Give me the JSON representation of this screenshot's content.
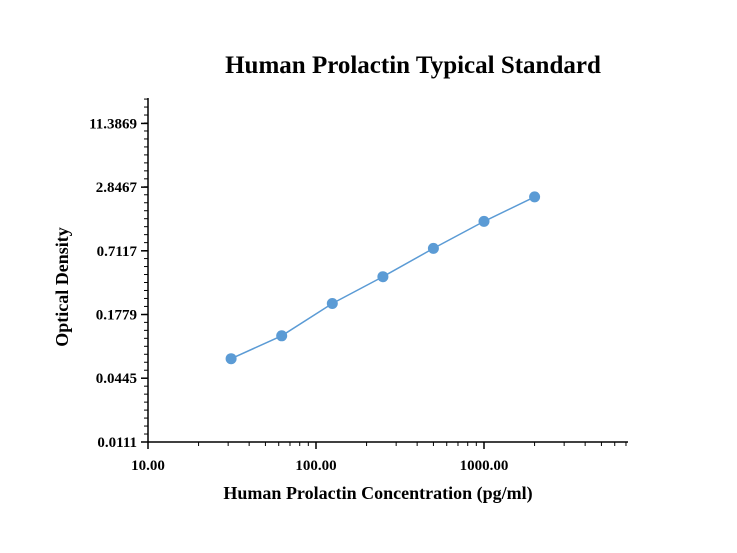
{
  "chart_data": {
    "type": "line",
    "title": "Human Prolactin Typical Standard",
    "xlabel": "Human Prolactin Concentration (pg/ml)",
    "ylabel": "Optical Density",
    "x_scale": "log",
    "y_scale": "log",
    "xlim": [
      10,
      7000
    ],
    "ylim": [
      0.0111,
      20
    ],
    "x_tick_labels": [
      "10.00",
      "100.00",
      "1000.00"
    ],
    "x_tick_values": [
      10,
      100,
      1000
    ],
    "y_tick_labels": [
      "0.0111",
      "0.0445",
      "0.1779",
      "0.7117",
      "2.8467",
      "11.3869"
    ],
    "y_tick_values": [
      0.0111,
      0.0445,
      0.1779,
      0.7117,
      2.8467,
      11.3869
    ],
    "grid": false,
    "series": [
      {
        "x": [
          31.25,
          62.5,
          125,
          250,
          500,
          1000,
          2000
        ],
        "y": [
          0.068,
          0.112,
          0.226,
          0.405,
          0.75,
          1.35,
          2.3
        ]
      }
    ],
    "colors": {
      "series": "#5b9bd5",
      "axis": "#000000"
    }
  }
}
